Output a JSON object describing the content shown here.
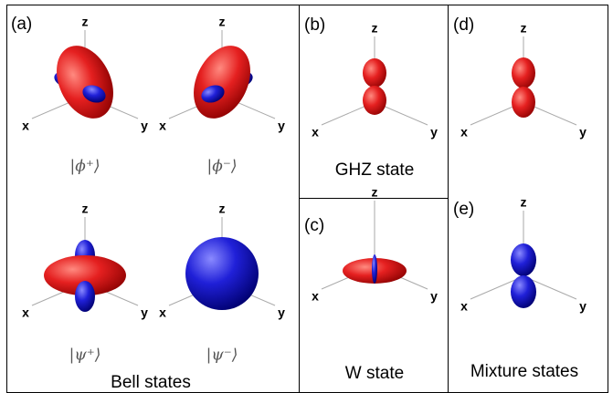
{
  "panels": [
    {
      "label": "(a)",
      "caption": "Bell states",
      "plots": [
        {
          "axes": [
            "z",
            "x",
            "y"
          ],
          "ket": "|ϕ⁺⟩"
        },
        {
          "axes": [
            "z",
            "x",
            "y"
          ],
          "ket": "|ϕ⁻⟩"
        },
        {
          "axes": [
            "z",
            "x",
            "y"
          ],
          "ket": "|ψ⁺⟩"
        },
        {
          "axes": [
            "z",
            "x",
            "y"
          ],
          "ket": "|ψ⁻⟩"
        }
      ]
    },
    {
      "label": "(b)",
      "caption": "GHZ state",
      "plots": [
        {
          "axes": [
            "z",
            "x",
            "y"
          ]
        }
      ]
    },
    {
      "label": "(c)",
      "caption": "W state",
      "plots": [
        {
          "axes": [
            "z",
            "x",
            "y"
          ]
        }
      ]
    },
    {
      "label": "(d)",
      "plots": [
        {
          "axes": [
            "z",
            "x",
            "y"
          ]
        }
      ]
    },
    {
      "label": "(e)",
      "caption": "Mixture states",
      "plots": [
        {
          "axes": [
            "z",
            "x",
            "y"
          ]
        }
      ]
    }
  ]
}
